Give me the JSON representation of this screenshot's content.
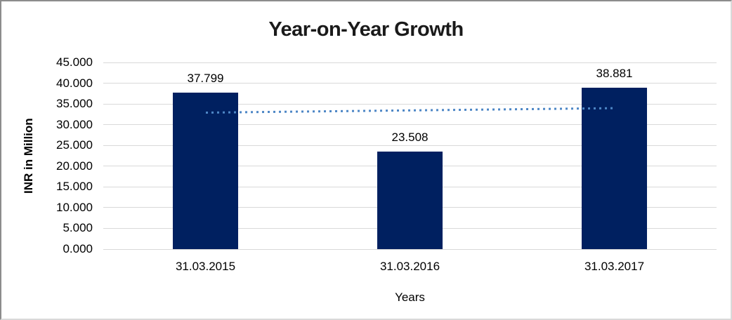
{
  "chart_data": {
    "type": "bar",
    "title": "Year-on-Year Growth",
    "xlabel": "Years",
    "ylabel": "INR in Million",
    "categories": [
      "31.03.2015",
      "31.03.2016",
      "31.03.2017"
    ],
    "values": [
      37.799,
      23.508,
      38.881
    ],
    "data_labels": [
      "37.799",
      "23.508",
      "38.881"
    ],
    "ylim": [
      0,
      45
    ],
    "ytick_step": 5,
    "ytick_labels": [
      "0.000",
      "5.000",
      "10.000",
      "15.000",
      "20.000",
      "25.000",
      "30.000",
      "35.000",
      "40.000",
      "45.000"
    ],
    "grid": true,
    "legend": "none",
    "colors": {
      "bar": "#002060",
      "trendline": "#4e87c6",
      "gridline": "#d9d9d9",
      "text": "#000000"
    },
    "trendline": {
      "type": "linear",
      "style": "dotted",
      "start_value": 32.86,
      "end_value": 33.94
    }
  }
}
